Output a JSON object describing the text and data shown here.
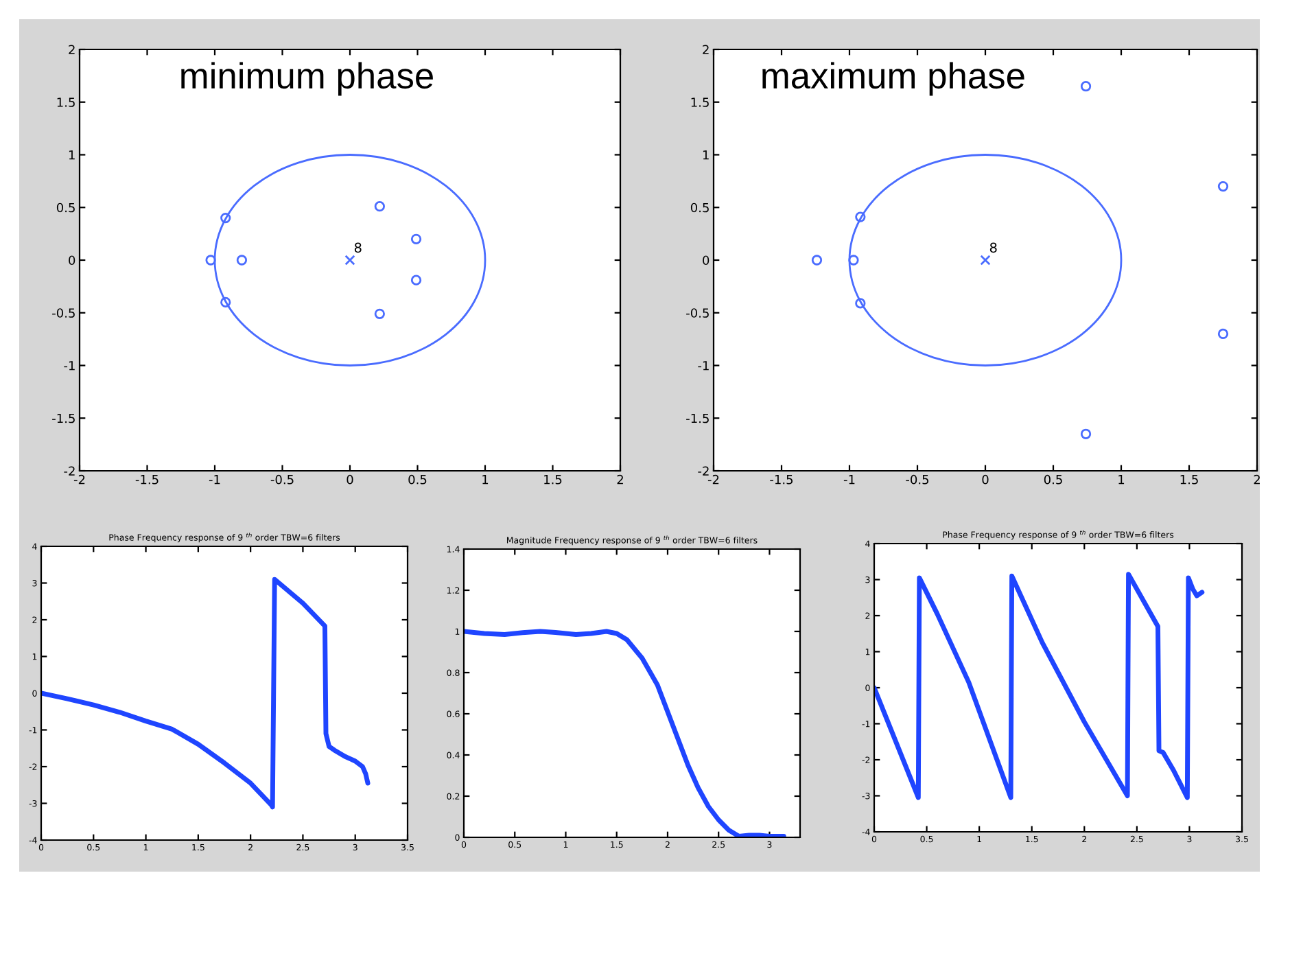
{
  "chart_data": [
    {
      "type": "scatter",
      "title": "minimum phase",
      "xlim": [
        -2,
        2
      ],
      "ylim": [
        -2,
        2
      ],
      "xticks": [
        -2,
        -1.5,
        -1,
        -0.5,
        0,
        0.5,
        1,
        1.5,
        2
      ],
      "yticks": [
        -2,
        -1.5,
        -1,
        -0.5,
        0,
        0.5,
        1,
        1.5,
        2
      ],
      "grid": false,
      "annotations": [
        {
          "text": "8",
          "x": 0,
          "y": 0
        }
      ],
      "series": [
        {
          "type": "scatter",
          "color": "#4a6cff",
          "marker": "circle",
          "x": [
            -1.03,
            -0.8,
            -0.92,
            -0.92,
            0.22,
            0.22,
            0.49,
            0.49
          ],
          "values": [
            0,
            0,
            0.4,
            -0.4,
            0.51,
            -0.51,
            0.2,
            -0.19
          ]
        },
        {
          "type": "scatter",
          "color": "#4a6cff",
          "marker": "cross",
          "x": [
            0
          ],
          "values": [
            0
          ]
        }
      ]
    },
    {
      "type": "scatter",
      "title": "maximum phase",
      "xlim": [
        -2,
        2
      ],
      "ylim": [
        -2,
        2
      ],
      "xticks": [
        -2,
        -1.5,
        -1,
        -0.5,
        0,
        0.5,
        1,
        1.5,
        2
      ],
      "yticks": [
        -2,
        -1.5,
        -1,
        -0.5,
        0,
        0.5,
        1,
        1.5,
        2
      ],
      "grid": false,
      "annotations": [
        {
          "text": "8",
          "x": 0,
          "y": 0
        }
      ],
      "series": [
        {
          "type": "scatter",
          "color": "#4a6cff",
          "marker": "circle",
          "x": [
            -1.24,
            -0.97,
            -0.92,
            -0.92,
            0.74,
            0.74,
            1.75,
            1.75
          ],
          "values": [
            0,
            0,
            0.41,
            -0.41,
            1.65,
            -1.65,
            0.7,
            -0.7
          ]
        },
        {
          "type": "scatter",
          "color": "#4a6cff",
          "marker": "cross",
          "x": [
            0
          ],
          "values": [
            0
          ]
        }
      ]
    },
    {
      "type": "line",
      "title": "Phase Frequency response of 9 $^{th}$ order TBW=6 filters",
      "xlim": [
        0,
        3.5
      ],
      "ylim": [
        -4,
        4
      ],
      "xticks": [
        0,
        0.5,
        1,
        1.5,
        2,
        2.5,
        3,
        3.5
      ],
      "yticks": [
        -4,
        -3,
        -2,
        -1,
        0,
        1,
        2,
        3,
        4
      ],
      "grid": false,
      "marker": "none",
      "line_style": "solid",
      "series": [
        {
          "color": "#1f45ff",
          "x": [
            0,
            0.25,
            0.5,
            0.75,
            1.0,
            1.25,
            1.5,
            1.75,
            2.0,
            2.2,
            2.21,
            2.23,
            2.5,
            2.71,
            2.72,
            2.75,
            2.8,
            2.9,
            3.0,
            3.07,
            3.1,
            3.12
          ],
          "values": [
            0,
            -0.15,
            -0.32,
            -0.52,
            -0.76,
            -0.98,
            -1.39,
            -1.9,
            -2.45,
            -3.05,
            -3.1,
            3.1,
            2.45,
            1.83,
            -1.1,
            -1.45,
            -1.55,
            -1.72,
            -1.85,
            -2.0,
            -2.2,
            -2.45
          ]
        }
      ]
    },
    {
      "type": "line",
      "title": "Magnitude Frequency response of 9 $^{th}$ order TBW=6 filters",
      "xlim": [
        0,
        3.3
      ],
      "ylim": [
        0,
        1.4
      ],
      "xticks": [
        0,
        0.5,
        1,
        1.5,
        2,
        2.5,
        3
      ],
      "yticks": [
        0,
        0.2,
        0.4,
        0.6,
        0.8,
        1,
        1.2,
        1.4
      ],
      "grid": false,
      "marker": "none",
      "line_style": "solid",
      "series": [
        {
          "color": "#1f45ff",
          "x": [
            0,
            0.2,
            0.4,
            0.6,
            0.75,
            0.9,
            1.1,
            1.25,
            1.4,
            1.5,
            1.6,
            1.75,
            1.9,
            2.0,
            2.1,
            2.2,
            2.3,
            2.4,
            2.5,
            2.6,
            2.7,
            2.8,
            2.9,
            3.0,
            3.14
          ],
          "values": [
            1.0,
            0.99,
            0.985,
            0.995,
            1.0,
            0.995,
            0.985,
            0.99,
            1.0,
            0.99,
            0.96,
            0.87,
            0.74,
            0.61,
            0.48,
            0.35,
            0.24,
            0.15,
            0.085,
            0.035,
            0.005,
            0.01,
            0.01,
            0.005,
            0.005
          ]
        }
      ]
    },
    {
      "type": "line",
      "title": "Phase Frequency response of 9 $^{th}$ order TBW=6 filters",
      "xlim": [
        0,
        3.5
      ],
      "ylim": [
        -4,
        4
      ],
      "xticks": [
        0,
        0.5,
        1,
        1.5,
        2,
        2.5,
        3,
        3.5
      ],
      "yticks": [
        -4,
        -3,
        -2,
        -1,
        0,
        1,
        2,
        3,
        4
      ],
      "grid": false,
      "marker": "none",
      "line_style": "solid",
      "series": [
        {
          "color": "#1f45ff",
          "x": [
            0,
            0.42,
            0.43,
            0.6,
            0.9,
            1.3,
            1.31,
            1.6,
            2.0,
            2.41,
            2.42,
            2.7,
            2.71,
            2.75,
            2.85,
            2.98,
            2.99,
            3.03,
            3.07,
            3.12
          ],
          "values": [
            0,
            -3.05,
            3.05,
            2.05,
            0.15,
            -3.05,
            3.1,
            1.25,
            -0.95,
            -3.0,
            3.15,
            1.7,
            -1.75,
            -1.8,
            -2.3,
            -3.05,
            3.05,
            2.75,
            2.55,
            2.65
          ]
        }
      ]
    }
  ]
}
